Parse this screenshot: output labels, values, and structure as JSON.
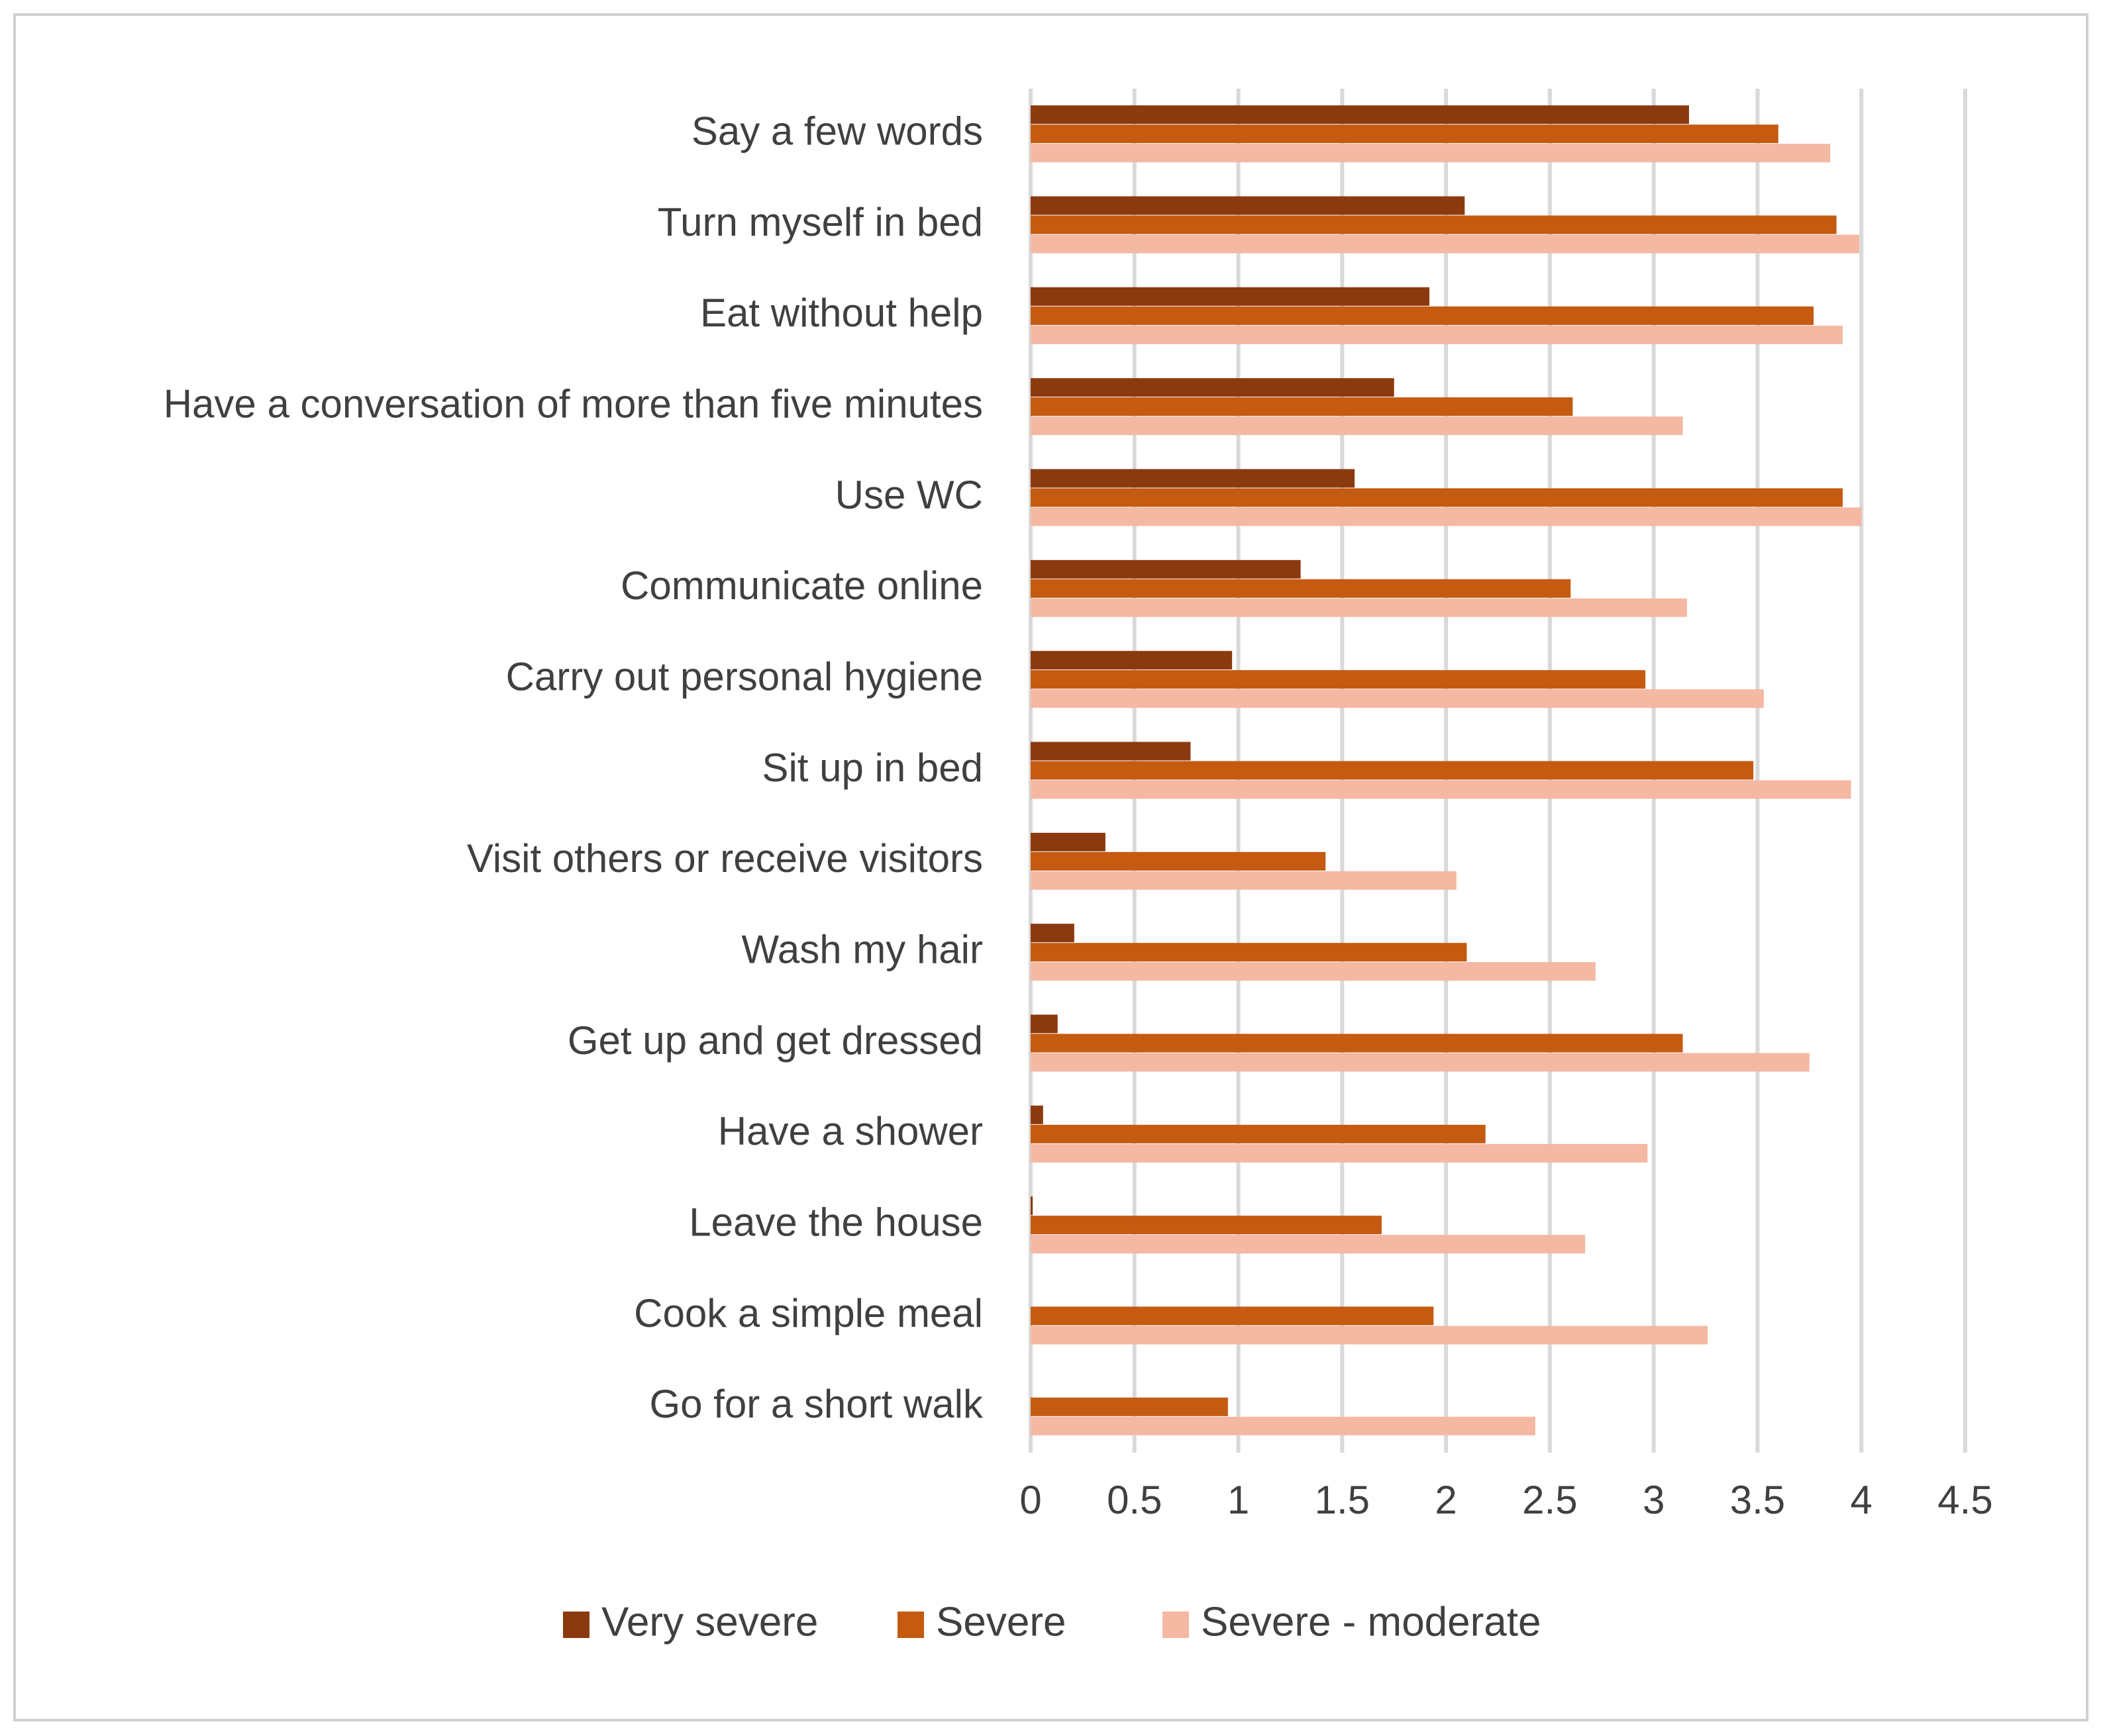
{
  "chart_data": {
    "type": "bar",
    "orientation": "horizontal",
    "title": "",
    "xlabel": "",
    "ylabel": "",
    "xlim": [
      0,
      4.5
    ],
    "x_ticks": [
      "0",
      "0.5",
      "1",
      "1.5",
      "2",
      "2.5",
      "3",
      "3.5",
      "4",
      "4.5"
    ],
    "grid": true,
    "legend_position": "bottom",
    "categories": [
      "Say a few words",
      "Turn myself in bed",
      "Eat without help",
      "Have a conversation of more than five minutes",
      "Use WC",
      "Communicate online",
      "Carry out personal hygiene",
      "Sit up in bed",
      "Visit others or receive visitors",
      "Wash my hair",
      "Get up and get dressed",
      "Have a shower",
      "Leave the house",
      "Cook a simple meal",
      "Go for a short walk"
    ],
    "series": [
      {
        "name": "Very severe",
        "color": "#8B3A0F",
        "values": [
          3.17,
          2.09,
          1.92,
          1.75,
          1.56,
          1.3,
          0.97,
          0.77,
          0.36,
          0.21,
          0.13,
          0.06,
          0.01,
          0,
          0
        ]
      },
      {
        "name": "Severe",
        "color": "#C55A11",
        "values": [
          3.6,
          3.88,
          3.77,
          2.61,
          3.91,
          2.6,
          2.96,
          3.48,
          1.42,
          2.1,
          3.14,
          2.19,
          1.69,
          1.94,
          0.95
        ]
      },
      {
        "name": "Severe - moderate",
        "color": "#F4B8A3",
        "values": [
          3.85,
          3.99,
          3.91,
          3.14,
          4.0,
          3.16,
          3.53,
          3.95,
          2.05,
          2.72,
          3.75,
          2.97,
          2.67,
          3.26,
          2.43
        ]
      }
    ]
  }
}
